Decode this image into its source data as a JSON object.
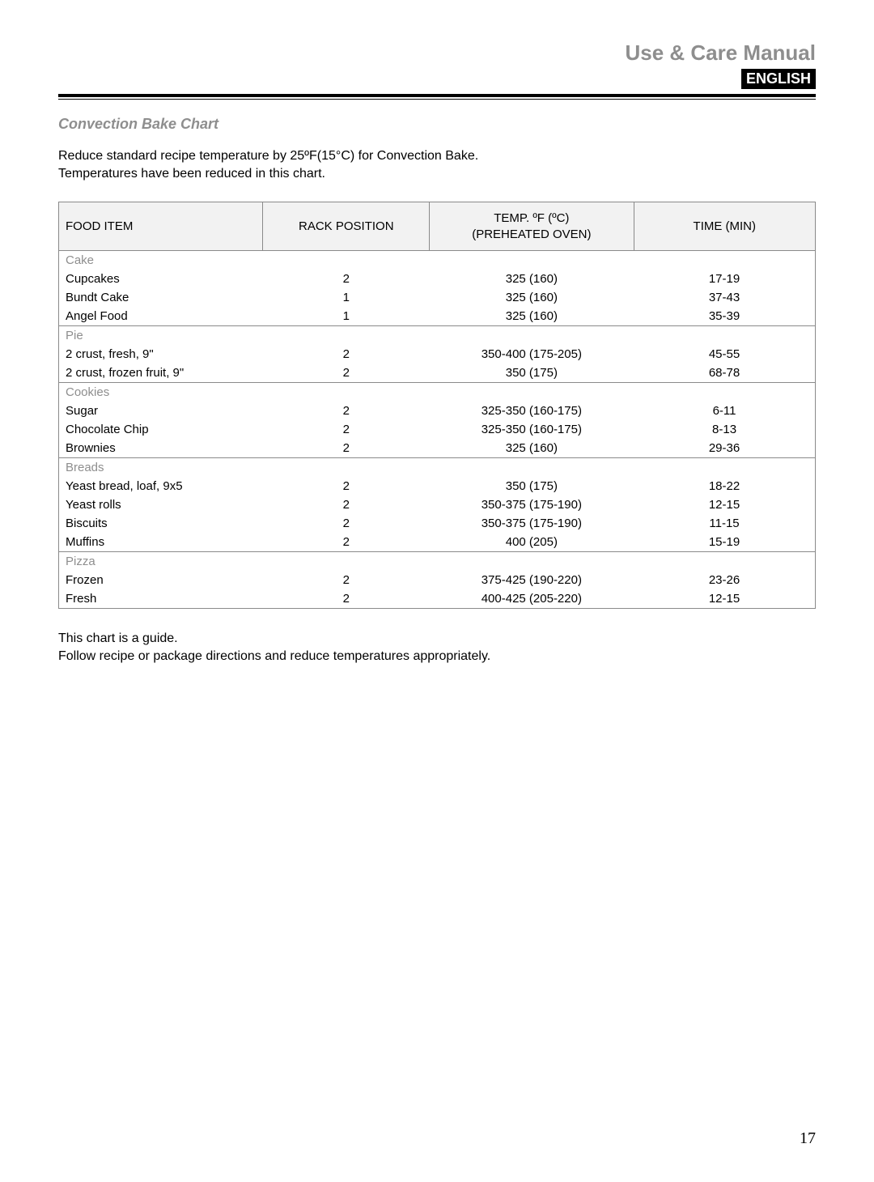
{
  "header": {
    "title": "Use & Care Manual",
    "language_badge": "ENGLISH"
  },
  "section": {
    "title": "Convection Bake Chart",
    "intro_line1": "Reduce standard recipe temperature by 25ºF(15°C) for Convection Bake.",
    "intro_line2": "Temperatures have been reduced in this chart."
  },
  "table": {
    "columns": {
      "food": "FOOD ITEM",
      "rack": "RACK POSITION",
      "temp_line1": "TEMP. ºF (ºC)",
      "temp_line2": "(PREHEATED OVEN)",
      "time": "TIME (MIN)"
    },
    "groups": [
      {
        "category": "Cake",
        "rows": [
          {
            "food": "Cupcakes",
            "rack": "2",
            "temp": "325 (160)",
            "time": "17-19"
          },
          {
            "food": "Bundt Cake",
            "rack": "1",
            "temp": "325 (160)",
            "time": "37-43"
          },
          {
            "food": "Angel Food",
            "rack": "1",
            "temp": "325 (160)",
            "time": "35-39"
          }
        ]
      },
      {
        "category": "Pie",
        "rows": [
          {
            "food": "2 crust, fresh, 9\"",
            "rack": "2",
            "temp": "350-400 (175-205)",
            "time": "45-55"
          },
          {
            "food": "2 crust, frozen fruit, 9\"",
            "rack": "2",
            "temp": "350 (175)",
            "time": "68-78"
          }
        ]
      },
      {
        "category": "Cookies",
        "rows": [
          {
            "food": "Sugar",
            "rack": "2",
            "temp": "325-350 (160-175)",
            "time": "6-11"
          },
          {
            "food": "Chocolate Chip",
            "rack": "2",
            "temp": "325-350 (160-175)",
            "time": "8-13"
          },
          {
            "food": "Brownies",
            "rack": "2",
            "temp": "325 (160)",
            "time": "29-36"
          }
        ]
      },
      {
        "category": "Breads",
        "rows": [
          {
            "food": "Yeast bread, loaf, 9x5",
            "rack": "2",
            "temp": "350 (175)",
            "time": "18-22"
          },
          {
            "food": "Yeast rolls",
            "rack": "2",
            "temp": "350-375 (175-190)",
            "time": "12-15"
          },
          {
            "food": "Biscuits",
            "rack": "2",
            "temp": "350-375 (175-190)",
            "time": "11-15"
          },
          {
            "food": "Muffins",
            "rack": "2",
            "temp": "400 (205)",
            "time": "15-19"
          }
        ]
      },
      {
        "category": "Pizza",
        "rows": [
          {
            "food": "Frozen",
            "rack": "2",
            "temp": "375-425 (190-220)",
            "time": "23-26"
          },
          {
            "food": "Fresh",
            "rack": "2",
            "temp": "400-425 (205-220)",
            "time": "12-15"
          }
        ]
      }
    ]
  },
  "footer": {
    "line1": "This chart is a guide.",
    "line2": "Follow recipe or package directions and reduce temperatures appropriately."
  },
  "page_number": "17"
}
